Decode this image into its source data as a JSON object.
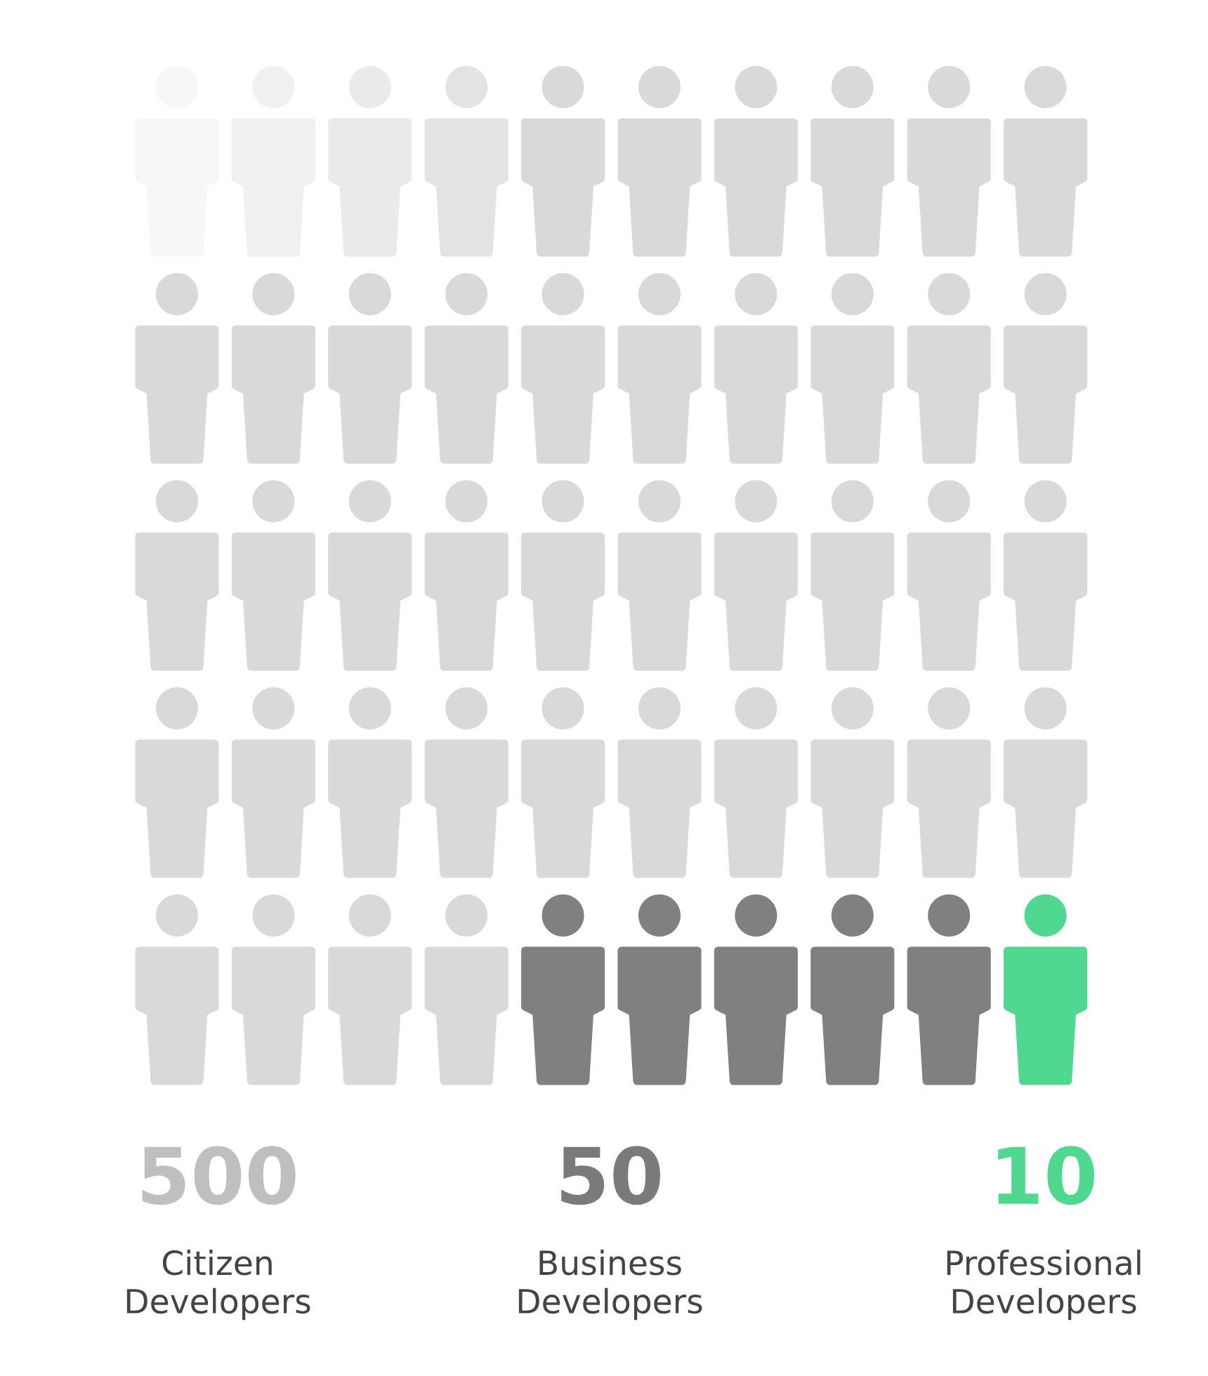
{
  "chart_data": {
    "type": "other",
    "categories": [
      "Citizen\nDevelopers",
      "Business\nDevelopers",
      "Professional\nDevelopers"
    ],
    "values": [
      500,
      50,
      10
    ],
    "colors": [
      "#bfbfbf",
      "#7a7a7a",
      "#50d890"
    ],
    "data_labels": true
  }
}
